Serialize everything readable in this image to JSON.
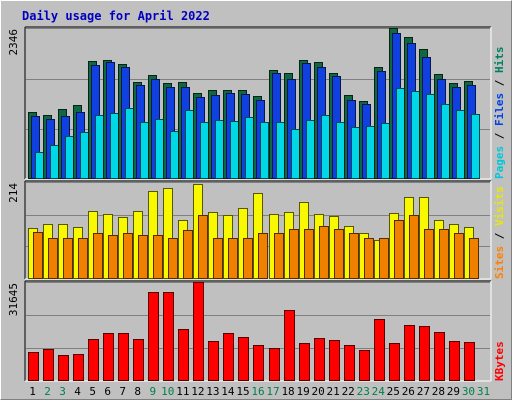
{
  "chart_data": {
    "type": "bar",
    "title": "Daily usage for April 2022",
    "categories": [
      "1",
      "2",
      "3",
      "4",
      "5",
      "6",
      "7",
      "8",
      "9",
      "10",
      "11",
      "12",
      "13",
      "14",
      "15",
      "16",
      "17",
      "18",
      "19",
      "20",
      "21",
      "22",
      "23",
      "24",
      "25",
      "26",
      "27",
      "28",
      "29",
      "30",
      "31"
    ],
    "weekend_days": [
      2,
      3,
      9,
      10,
      16,
      17,
      23,
      24,
      30,
      31
    ],
    "panels": [
      {
        "id": "hits-files-pages",
        "ymax_label": "2346",
        "ymax": 2346,
        "legend": [
          {
            "text": "Pages",
            "color": "#00c8d8"
          },
          {
            "text": " / ",
            "color": "#000000"
          },
          {
            "text": "Files",
            "color": "#0040e8"
          },
          {
            "text": " / ",
            "color": "#000000"
          },
          {
            "text": "Hits",
            "color": "#008060"
          }
        ],
        "series": [
          {
            "name": "Hits",
            "color": "#106840",
            "values": [
              1030,
              980,
              1080,
              1140,
              1830,
              1840,
              1790,
              1500,
              1610,
              1490,
              1500,
              1330,
              1370,
              1380,
              1380,
              1290,
              1690,
              1650,
              1850,
              1810,
              1640,
              1300,
              1210,
              1740,
              2346,
              2200,
              2020,
              1620,
              1480,
              1510,
              0
            ]
          },
          {
            "name": "Files",
            "color": "#1040e0",
            "values": [
              970,
              930,
              970,
              1030,
              1760,
              1810,
              1740,
              1460,
              1550,
              1420,
              1430,
              1260,
              1300,
              1330,
              1320,
              1220,
              1640,
              1550,
              1800,
              1740,
              1590,
              1220,
              1150,
              1680,
              2270,
              2110,
              1900,
              1550,
              1420,
              1460,
              0
            ]
          },
          {
            "name": "Pages",
            "color": "#00d8e8",
            "values": [
              410,
              520,
              660,
              720,
              980,
              1020,
              1090,
              880,
              930,
              730,
              1060,
              870,
              900,
              890,
              960,
              880,
              880,
              770,
              910,
              980,
              870,
              790,
              810,
              860,
              1400,
              1360,
              1310,
              1160,
              1060,
              1000,
              0
            ]
          }
        ]
      },
      {
        "id": "visits-sites",
        "ymax_label": "214",
        "ymax": 214,
        "legend": [
          {
            "text": "Sites",
            "color": "#ff8000"
          },
          {
            "text": " / ",
            "color": "#000000"
          },
          {
            "text": "Visits",
            "color": "#e8e800"
          }
        ],
        "series": [
          {
            "name": "Visits",
            "color": "#f8f800",
            "values": [
              112,
              120,
              120,
              114,
              150,
              142,
              135,
              150,
              193,
              200,
              130,
              210,
              148,
              140,
              155,
              190,
              142,
              147,
              170,
              143,
              138,
              115,
              100,
              85,
              145,
              180,
              180,
              130,
              120,
              113,
              0
            ]
          },
          {
            "name": "Sites",
            "color": "#f08000",
            "values": [
              103,
              90,
              90,
              90,
              100,
              95,
              100,
              95,
              95,
              90,
              108,
              140,
              90,
              90,
              90,
              100,
              100,
              110,
              110,
              115,
              110,
              100,
              90,
              90,
              130,
              140,
              110,
              110,
              100,
              90,
              0
            ]
          }
        ]
      },
      {
        "id": "kbytes",
        "ymax_label": "31645",
        "ymax": 31645,
        "legend": [
          {
            "text": "KBytes",
            "color": "#ff0000"
          }
        ],
        "series": [
          {
            "name": "KBytes",
            "color": "#ff0000",
            "values": [
              9200,
              10000,
              8000,
              8300,
              13100,
              15300,
              15200,
              13200,
              28400,
              28400,
              16500,
              31645,
              12500,
              15300,
              13900,
              11300,
              10400,
              22600,
              11900,
              13600,
              12900,
              11200,
              9600,
              19600,
              11800,
              17800,
              17300,
              15500,
              12600,
              12400,
              0
            ]
          }
        ]
      }
    ]
  }
}
